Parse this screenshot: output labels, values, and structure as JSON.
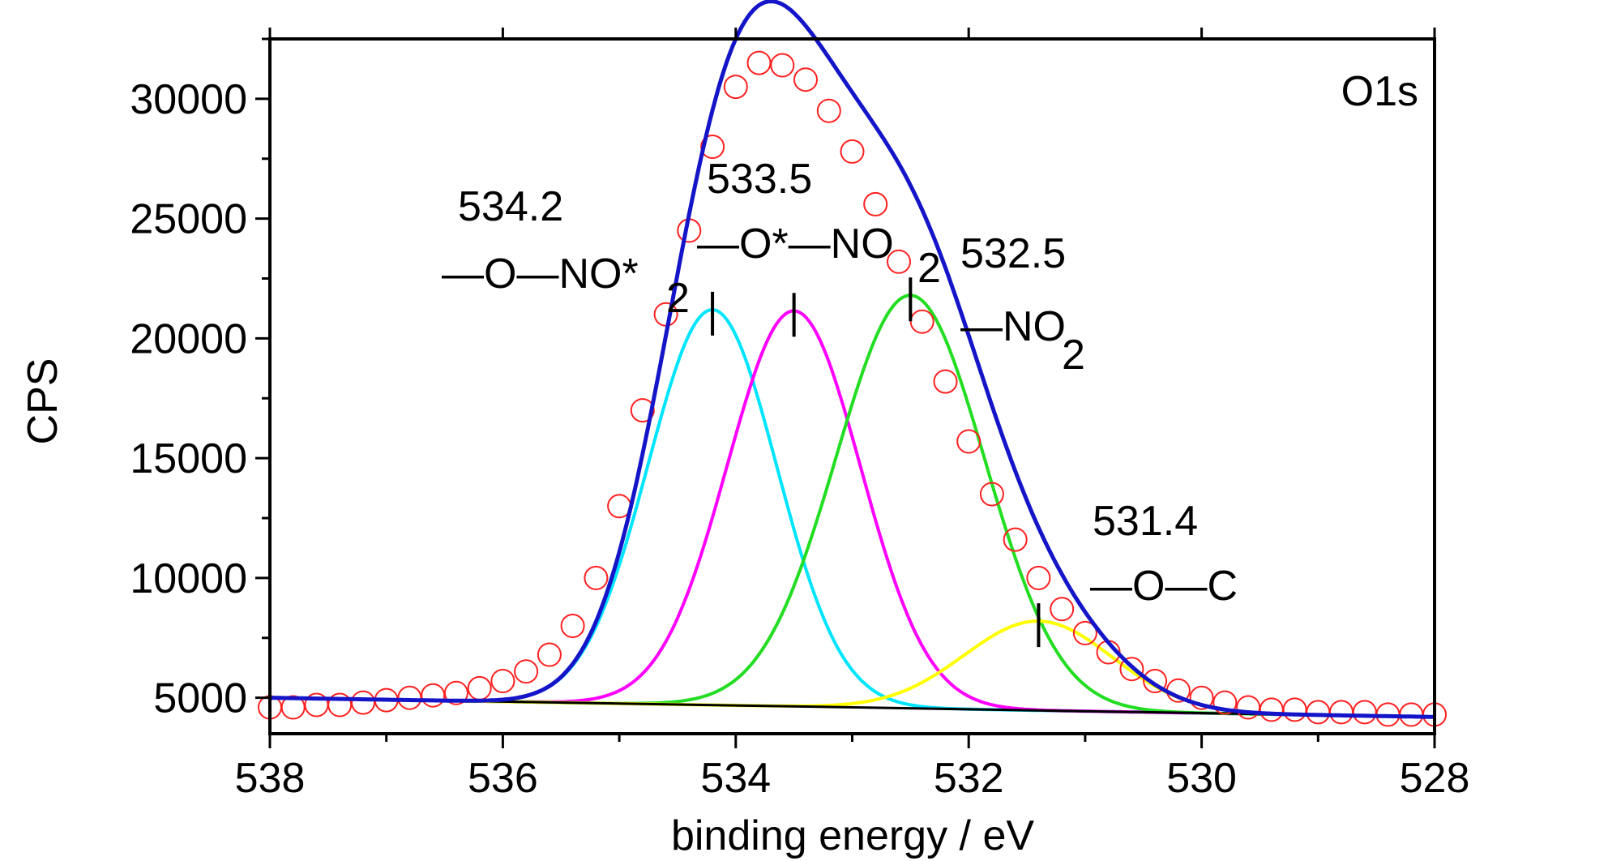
{
  "chart_data": {
    "type": "line",
    "title": "",
    "panel_label": "O1s",
    "xlabel": "binding energy / eV",
    "ylabel": "CPS",
    "xlim": [
      538,
      528
    ],
    "x_reversed": true,
    "ylim": [
      3500,
      32500
    ],
    "x_ticks": [
      538,
      536,
      534,
      532,
      530,
      528
    ],
    "x_tick_labels": [
      "538",
      "536",
      "534",
      "532",
      "530",
      "528"
    ],
    "y_ticks": [
      5000,
      10000,
      15000,
      20000,
      25000,
      30000
    ],
    "y_tick_labels": [
      "5000",
      "10000",
      "15000",
      "20000",
      "25000",
      "30000"
    ],
    "grid": false,
    "colors": {
      "data_points": "#ff2020",
      "envelope": "#1414c8",
      "comp_534_2": "#00e5ff",
      "comp_533_5": "#ff00ff",
      "comp_532_5": "#22dd22",
      "comp_531_4": "#ffff00",
      "background": "#000000"
    },
    "background": {
      "x_start": 538,
      "y_start": 5000,
      "x_end": 528,
      "y_end": 4200
    },
    "components": [
      {
        "center": 534.2,
        "peak": 21200,
        "fwhm": 1.3,
        "color_key": "comp_534_2",
        "label_value": "534.2",
        "label_group": [
          "—O—NO*",
          "2"
        ]
      },
      {
        "center": 533.5,
        "peak": 21150,
        "fwhm": 1.35,
        "color_key": "comp_533_5",
        "label_value": "533.5",
        "label_group": [
          "—O*—NO",
          "2"
        ]
      },
      {
        "center": 532.5,
        "peak": 21800,
        "fwhm": 1.5,
        "color_key": "comp_532_5",
        "label_value": "532.5",
        "label_group": [
          "—NO",
          "2"
        ]
      },
      {
        "center": 531.4,
        "peak": 8200,
        "fwhm": 1.5,
        "color_key": "comp_531_4",
        "label_value": "531.4",
        "label_group": [
          "—O—C",
          ""
        ]
      }
    ],
    "experimental_points": {
      "x": [
        538.0,
        537.8,
        537.6,
        537.4,
        537.2,
        537.0,
        536.8,
        536.6,
        536.4,
        536.2,
        536.0,
        535.8,
        535.6,
        535.4,
        535.2,
        535.0,
        534.8,
        534.6,
        534.4,
        534.2,
        534.0,
        533.8,
        533.6,
        533.4,
        533.2,
        533.0,
        532.8,
        532.6,
        532.4,
        532.2,
        532.0,
        531.8,
        531.6,
        531.4,
        531.2,
        531.0,
        530.8,
        530.6,
        530.4,
        530.2,
        530.0,
        529.8,
        529.6,
        529.4,
        529.2,
        529.0,
        528.8,
        528.6,
        528.4,
        528.2,
        528.0
      ],
      "y": [
        4600,
        4600,
        4700,
        4700,
        4800,
        4900,
        5000,
        5100,
        5200,
        5400,
        5700,
        6100,
        6800,
        8000,
        10000,
        13000,
        17000,
        21000,
        24500,
        28000,
        30500,
        31500,
        31400,
        30800,
        29500,
        27800,
        25600,
        23200,
        20700,
        18200,
        15700,
        13500,
        11600,
        10000,
        8700,
        7700,
        6900,
        6200,
        5700,
        5300,
        5000,
        4800,
        4600,
        4500,
        4500,
        4400,
        4400,
        4400,
        4300,
        4300,
        4300
      ]
    }
  }
}
